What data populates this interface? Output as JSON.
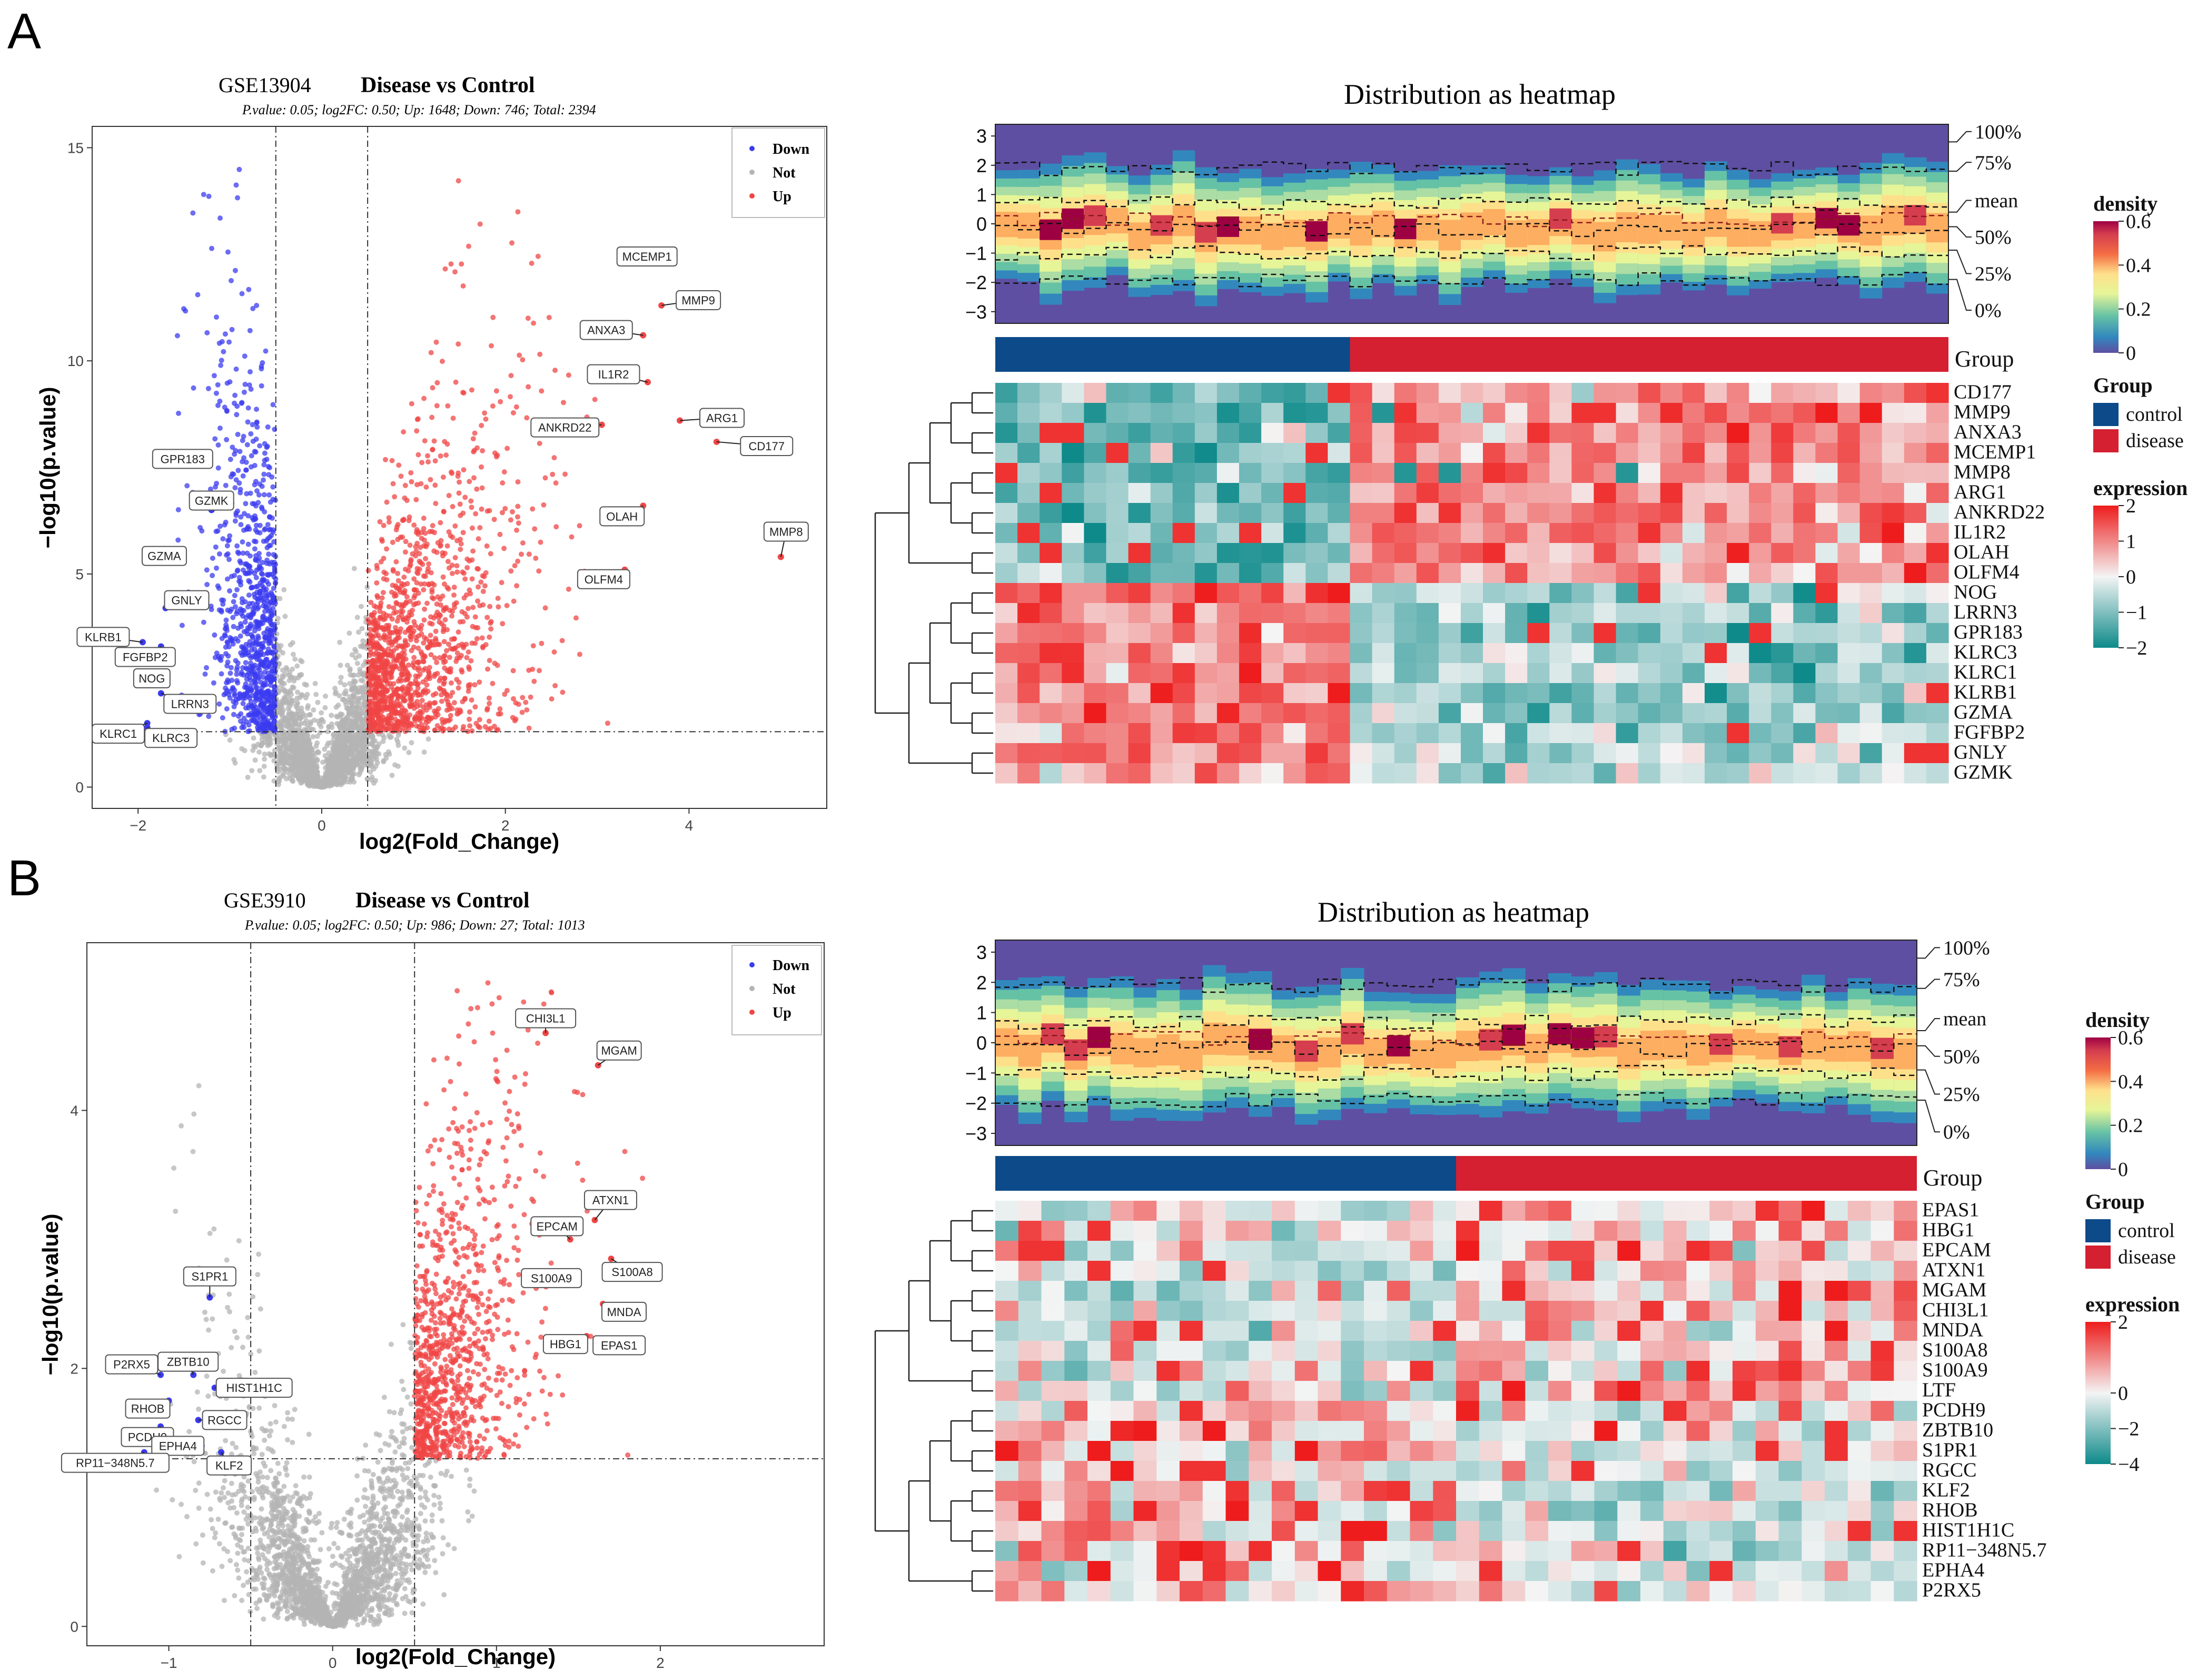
{
  "panels": [
    {
      "letter": "A",
      "volcano": {
        "dataset": "GSE13904",
        "title": "Disease vs Control",
        "subtitle": "P.value:  0.05; log2FC: 0.50; Up: 1648; Down: 746; Total: 2394",
        "xlabel": "log2(Fold_Change)",
        "ylabel": "−log10(p.value)",
        "legend": [
          "Down",
          "Not",
          "Up"
        ]
      },
      "heatmap": {
        "title": "Distribution as heatmap",
        "group_label": "Group",
        "group_levels": [
          "control",
          "disease"
        ],
        "density_title": "density",
        "expression_title": "expression",
        "genes": [
          "CD177",
          "MMP9",
          "ANXA3",
          "MCEMP1",
          "MMP8",
          "ARG1",
          "ANKRD22",
          "IL1R2",
          "OLAH",
          "OLFM4",
          "NOG",
          "LRRN3",
          "GPR183",
          "KLRC3",
          "KLRC1",
          "KLRB1",
          "GZMA",
          "FGFBP2",
          "GNLY",
          "GZMK"
        ]
      }
    },
    {
      "letter": "B",
      "volcano": {
        "dataset": "GSE3910",
        "title": "Disease vs Control",
        "subtitle": "P.value:  0.05; log2FC: 0.50; Up: 986; Down: 27; Total: 1013",
        "xlabel": "log2(Fold_Change)",
        "ylabel": "−log10(p.value)",
        "legend": [
          "Down",
          "Not",
          "Up"
        ]
      },
      "heatmap": {
        "title": "Distribution as heatmap",
        "group_label": "Group",
        "group_levels": [
          "control",
          "disease"
        ],
        "density_title": "density",
        "expression_title": "expression",
        "genes": [
          "EPAS1",
          "HBG1",
          "EPCAM",
          "ATXN1",
          "MGAM",
          "CHI3L1",
          "MNDA",
          "S100A8",
          "S100A9",
          "LTF",
          "PCDH9",
          "ZBTB10",
          "S1PR1",
          "RGCC",
          "KLF2",
          "RHOB",
          "HIST1H1C",
          "RP11−348N5.7",
          "EPHA4",
          "P2RX5"
        ]
      }
    }
  ],
  "colors": {
    "down": "#3b3bf0",
    "not": "#b4b4b4",
    "up": "#f04646",
    "control": "#0c4a8a",
    "disease": "#d42030",
    "expr_high": "#ee1c1c",
    "expr_mid": "#f4f4f4",
    "expr_low": "#0e8a8a"
  },
  "chart_data": [
    {
      "type": "scatter",
      "panel": "A",
      "title": "GSE13904 Disease vs Control",
      "xlabel": "log2(Fold_Change)",
      "ylabel": "−log10(p.value)",
      "xlim": [
        -2.5,
        5.5
      ],
      "ylim": [
        -0.5,
        15.5
      ],
      "xticks": [
        -2,
        0,
        2,
        4
      ],
      "yticks": [
        0,
        5,
        10,
        15
      ],
      "thresholds": {
        "log2fc": 0.5,
        "neg_log10_p": 1.3
      },
      "counts": {
        "up": 1648,
        "down": 746,
        "total": 2394
      },
      "labeled_points": [
        {
          "gene": "MCEMP1",
          "x": 3.6,
          "y": 12.3,
          "group": "up"
        },
        {
          "gene": "MMP9",
          "x": 3.7,
          "y": 11.3,
          "group": "up"
        },
        {
          "gene": "ANXA3",
          "x": 3.5,
          "y": 10.6,
          "group": "up"
        },
        {
          "gene": "IL1R2",
          "x": 3.55,
          "y": 9.5,
          "group": "up"
        },
        {
          "gene": "ARG1",
          "x": 3.9,
          "y": 8.6,
          "group": "up"
        },
        {
          "gene": "ANKRD22",
          "x": 3.05,
          "y": 8.5,
          "group": "up"
        },
        {
          "gene": "CD177",
          "x": 4.3,
          "y": 8.1,
          "group": "up"
        },
        {
          "gene": "MMP8",
          "x": 5.0,
          "y": 5.4,
          "group": "up"
        },
        {
          "gene": "OLAH",
          "x": 3.5,
          "y": 6.6,
          "group": "up"
        },
        {
          "gene": "OLFM4",
          "x": 3.3,
          "y": 5.1,
          "group": "up"
        },
        {
          "gene": "GPR183",
          "x": -1.4,
          "y": 7.7,
          "group": "down"
        },
        {
          "gene": "GZMK",
          "x": -1.2,
          "y": 6.5,
          "group": "down"
        },
        {
          "gene": "GZMA",
          "x": -1.6,
          "y": 5.3,
          "group": "down"
        },
        {
          "gene": "KLRB1",
          "x": -1.95,
          "y": 3.4,
          "group": "down"
        },
        {
          "gene": "GNLY",
          "x": -1.7,
          "y": 4.2,
          "group": "down"
        },
        {
          "gene": "FGFBP2",
          "x": -1.75,
          "y": 3.3,
          "group": "down"
        },
        {
          "gene": "NOG",
          "x": -1.85,
          "y": 2.7,
          "group": "down"
        },
        {
          "gene": "LRRN3",
          "x": -1.75,
          "y": 2.2,
          "group": "down"
        },
        {
          "gene": "KLRC1",
          "x": -1.9,
          "y": 1.5,
          "group": "down"
        },
        {
          "gene": "KLRC3",
          "x": -1.9,
          "y": 1.4,
          "group": "down"
        }
      ]
    },
    {
      "type": "heatmap",
      "panel": "A",
      "title": "Distribution as heatmap",
      "density_range": [
        0,
        0.6
      ],
      "density_ticks": [
        0,
        0.2,
        0.4,
        0.6
      ],
      "expression_range": [
        -2,
        2
      ],
      "expression_ticks": [
        -2,
        -1,
        0,
        1,
        2
      ],
      "density_yticks": [
        -3,
        -2,
        -1,
        0,
        1,
        2,
        3
      ],
      "quantile_labels": [
        "100%",
        "75%",
        "mean",
        "50%",
        "25%",
        "0%"
      ],
      "n_control": 16,
      "n_disease": 27,
      "up_genes": 10,
      "down_genes": 10
    },
    {
      "type": "scatter",
      "panel": "B",
      "title": "GSE3910 Disease vs Control",
      "xlabel": "log2(Fold_Change)",
      "ylabel": "−log10(p.value)",
      "xlim": [
        -1.5,
        3.0
      ],
      "ylim": [
        -0.15,
        5.3
      ],
      "xticks": [
        -1,
        0,
        1,
        2
      ],
      "yticks": [
        0,
        2,
        4
      ],
      "thresholds": {
        "log2fc": 0.5,
        "neg_log10_p": 1.3
      },
      "counts": {
        "up": 986,
        "down": 27,
        "total": 1013
      },
      "labeled_points": [
        {
          "gene": "CHI3L1",
          "x": 1.3,
          "y": 4.6,
          "group": "up"
        },
        {
          "gene": "MGAM",
          "x": 1.62,
          "y": 4.35,
          "group": "up"
        },
        {
          "gene": "ATXN1",
          "x": 1.6,
          "y": 3.15,
          "group": "up"
        },
        {
          "gene": "EPCAM",
          "x": 1.45,
          "y": 3.0,
          "group": "up"
        },
        {
          "gene": "S100A8",
          "x": 1.7,
          "y": 2.85,
          "group": "up"
        },
        {
          "gene": "S100A9",
          "x": 1.48,
          "y": 2.7,
          "group": "up"
        },
        {
          "gene": "MNDA",
          "x": 1.65,
          "y": 2.5,
          "group": "up"
        },
        {
          "gene": "HBG1",
          "x": 1.55,
          "y": 2.25,
          "group": "up"
        },
        {
          "gene": "EPAS1",
          "x": 1.62,
          "y": 2.2,
          "group": "up"
        },
        {
          "gene": "S1PR1",
          "x": -0.75,
          "y": 2.55,
          "group": "down"
        },
        {
          "gene": "P2RX5",
          "x": -1.05,
          "y": 1.95,
          "group": "down"
        },
        {
          "gene": "ZBTB10",
          "x": -0.85,
          "y": 1.95,
          "group": "down"
        },
        {
          "gene": "HIST1H1C",
          "x": -0.72,
          "y": 1.85,
          "group": "down"
        },
        {
          "gene": "RHOB",
          "x": -1.0,
          "y": 1.75,
          "group": "down"
        },
        {
          "gene": "RGCC",
          "x": -0.82,
          "y": 1.6,
          "group": "down"
        },
        {
          "gene": "PCDH9",
          "x": -1.05,
          "y": 1.55,
          "group": "down"
        },
        {
          "gene": "EPHA4",
          "x": -0.8,
          "y": 1.4,
          "group": "down"
        },
        {
          "gene": "KLF2",
          "x": -0.68,
          "y": 1.35,
          "group": "down"
        },
        {
          "gene": "RP11−348N5.7",
          "x": -1.15,
          "y": 1.35,
          "group": "down"
        }
      ]
    },
    {
      "type": "heatmap",
      "panel": "B",
      "title": "Distribution as heatmap",
      "density_range": [
        0,
        0.6
      ],
      "density_ticks": [
        0,
        0.2,
        0.4,
        0.6
      ],
      "expression_range": [
        -4,
        2
      ],
      "expression_ticks": [
        -4,
        -2,
        0,
        2
      ],
      "density_yticks": [
        -3,
        -2,
        -1,
        0,
        1,
        2,
        3
      ],
      "quantile_labels": [
        "100%",
        "75%",
        "mean",
        "50%",
        "25%",
        "0%"
      ],
      "n_control": 20,
      "n_disease": 20,
      "up_genes": 10,
      "down_genes": 10
    }
  ]
}
